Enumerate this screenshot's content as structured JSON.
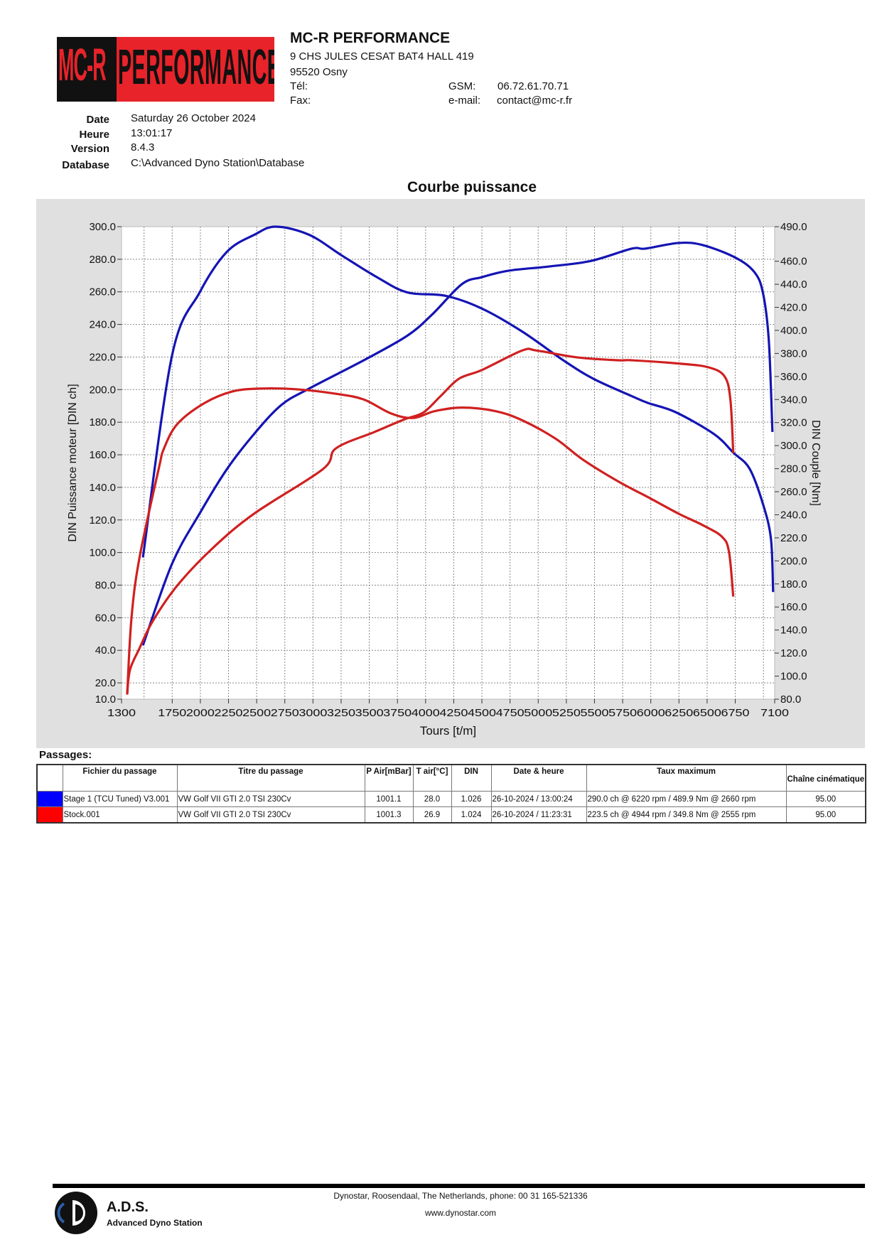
{
  "header": {
    "logo_text": "MC-R PERFORMANCE",
    "company": "MC-R PERFORMANCE",
    "address1": "9 CHS JULES CESAT BAT4 HALL 419",
    "address2": "95520 Osny",
    "tel_label": "Tél:",
    "fax_label": "Fax:",
    "gsm_label": "GSM:",
    "gsm_value": "06.72.61.70.71",
    "email_label": "e-mail:",
    "email_value": "contact@mc-r.fr"
  },
  "info": {
    "date_label": "Date",
    "date_value": "Saturday 26 October 2024",
    "heure_label": "Heure",
    "heure_value": "13:01:17",
    "version_label": "Version",
    "version_value": "8.4.3",
    "database_label": "Database",
    "database_value": "C:\\Advanced Dyno Station\\Database"
  },
  "chart_data": {
    "type": "line",
    "title": "Courbe puissance",
    "xlabel": "Tours [t/m]",
    "ylabel_left": "DIN Puissance moteur [DIN ch]",
    "ylabel_right": "DIN Couple [Nm]",
    "xlim": [
      1300,
      7100
    ],
    "ylim_left": [
      10,
      300
    ],
    "ylim_right": [
      80,
      490
    ],
    "x_ticks": [
      "1300",
      "1750",
      "2000",
      "2250",
      "2500",
      "2750",
      "3000",
      "3250",
      "3500",
      "3750",
      "4000",
      "4250",
      "4500",
      "4750",
      "5000",
      "5250",
      "5500",
      "5750",
      "6000",
      "6250",
      "6500",
      "6750",
      "7100"
    ],
    "x_tick_values": [
      1300,
      1750,
      2000,
      2250,
      2500,
      2750,
      3000,
      3250,
      3500,
      3750,
      4000,
      4250,
      4500,
      4750,
      5000,
      5250,
      5500,
      5750,
      6000,
      6250,
      6500,
      6750,
      7100
    ],
    "y_left_ticks": [
      "300.0",
      "280.0",
      "260.0",
      "240.0",
      "220.0",
      "200.0",
      "180.0",
      "160.0",
      "140.0",
      "120.0",
      "100.0",
      "80.0",
      "60.0",
      "40.0",
      "20.0",
      "10.0"
    ],
    "y_left_tick_values": [
      300,
      280,
      260,
      240,
      220,
      200,
      180,
      160,
      140,
      120,
      100,
      80,
      60,
      40,
      20,
      10
    ],
    "y_right_ticks": [
      "490.0",
      "460.0",
      "440.0",
      "420.0",
      "400.0",
      "380.0",
      "360.0",
      "340.0",
      "320.0",
      "300.0",
      "280.0",
      "260.0",
      "240.0",
      "220.0",
      "200.0",
      "180.0",
      "160.0",
      "140.0",
      "120.0",
      "100.0",
      "80.0"
    ],
    "y_right_tick_values": [
      490,
      460,
      440,
      420,
      400,
      380,
      360,
      340,
      320,
      300,
      280,
      260,
      240,
      220,
      200,
      180,
      160,
      140,
      120,
      100,
      80
    ],
    "grid": true,
    "series": [
      {
        "axis": "left",
        "color": "#1414b4",
        "points": [
          [
            1490,
            43
          ],
          [
            1748,
            93
          ],
          [
            1994,
            124
          ],
          [
            2234,
            151
          ],
          [
            2480,
            173
          ],
          [
            2720,
            190.6
          ],
          [
            2965,
            200.6
          ],
          [
            3451,
            218
          ],
          [
            3836,
            233
          ],
          [
            4057,
            246
          ],
          [
            4322,
            264.7
          ],
          [
            4500,
            269
          ],
          [
            4738,
            273
          ],
          [
            5104,
            275.6
          ],
          [
            5470,
            279
          ],
          [
            5830,
            286.5
          ],
          [
            5950,
            286.5
          ],
          [
            6246,
            290
          ],
          [
            6461,
            288.7
          ],
          [
            6751,
            281
          ],
          [
            6921,
            272
          ],
          [
            6997,
            259
          ],
          [
            7048,
            230
          ],
          [
            7080,
            174
          ]
        ]
      },
      {
        "axis": "right",
        "color": "#1414b4",
        "points": [
          [
            1490,
            203
          ],
          [
            1748,
            378
          ],
          [
            1994,
            433
          ],
          [
            2234,
            468
          ],
          [
            2480,
            483
          ],
          [
            2669,
            490
          ],
          [
            2965,
            483
          ],
          [
            3256,
            465
          ],
          [
            3571,
            446
          ],
          [
            3836,
            433
          ],
          [
            4177,
            430
          ],
          [
            4499,
            419
          ],
          [
            4858,
            399
          ],
          [
            5224,
            374
          ],
          [
            5490,
            358
          ],
          [
            5830,
            343
          ],
          [
            5975,
            337
          ],
          [
            6221,
            329
          ],
          [
            6562,
            310
          ],
          [
            6732,
            294
          ],
          [
            6877,
            280
          ],
          [
            6997,
            249
          ],
          [
            7067,
            219
          ],
          [
            7086,
            173
          ]
        ]
      },
      {
        "axis": "left",
        "color": "#d02020",
        "points": [
          [
            1350,
            13
          ],
          [
            1375,
            28
          ],
          [
            1458,
            41
          ],
          [
            1578,
            58
          ],
          [
            1798,
            80
          ],
          [
            2114,
            103
          ],
          [
            2480,
            124
          ],
          [
            3085,
            151
          ],
          [
            3205,
            164
          ],
          [
            3546,
            174
          ],
          [
            3811,
            181.7
          ],
          [
            3981,
            186
          ],
          [
            4133,
            196
          ],
          [
            4297,
            206.7
          ],
          [
            4499,
            212
          ],
          [
            4858,
            224
          ],
          [
            4984,
            224
          ],
          [
            5344,
            219.8
          ],
          [
            5710,
            218
          ],
          [
            5830,
            218
          ],
          [
            6246,
            216
          ],
          [
            6511,
            213.7
          ],
          [
            6656,
            208
          ],
          [
            6707,
            193.6
          ],
          [
            6732,
            161
          ]
        ]
      },
      {
        "axis": "right",
        "color": "#d02020",
        "points": [
          [
            1350,
            84
          ],
          [
            1388,
            150
          ],
          [
            1458,
            202
          ],
          [
            1628,
            279
          ],
          [
            1679,
            298
          ],
          [
            1798,
            319
          ],
          [
            2038,
            337
          ],
          [
            2284,
            347
          ],
          [
            2524,
            349.5
          ],
          [
            2839,
            349
          ],
          [
            3205,
            345
          ],
          [
            3451,
            340
          ],
          [
            3691,
            328
          ],
          [
            3887,
            324
          ],
          [
            4083,
            330
          ],
          [
            4322,
            333
          ],
          [
            4618,
            330
          ],
          [
            4858,
            322
          ],
          [
            5155,
            306
          ],
          [
            5395,
            288
          ],
          [
            5710,
            269
          ],
          [
            6000,
            254
          ],
          [
            6246,
            241
          ],
          [
            6461,
            231
          ],
          [
            6631,
            221
          ],
          [
            6694,
            208
          ],
          [
            6732,
            169
          ]
        ]
      }
    ]
  },
  "passages": {
    "label": "Passages:",
    "columns": [
      "",
      "Fichier du passage",
      "Titre du passage",
      "P Air[mBar]",
      "T air[°C]",
      "DIN",
      "Date & heure",
      "Taux maximum",
      "Chaîne cinématique"
    ],
    "rows": [
      {
        "color": "#0000ff",
        "fichier": "Stage 1 (TCU Tuned) V3.001",
        "titre": "VW Golf VII GTI 2.0 TSI 230Cv",
        "pair": "1001.1",
        "tair": "28.0",
        "din": "1.026",
        "date": "26-10-2024 / 13:00:24",
        "taux": "290.0 ch @ 6220 rpm / 489.9 Nm @ 2660 rpm",
        "chaine": "95.00"
      },
      {
        "color": "#ff0000",
        "fichier": "Stock.001",
        "titre": "VW Golf VII GTI 2.0 TSI 230Cv",
        "pair": "1001.3",
        "tair": "26.9",
        "din": "1.024",
        "date": "26-10-2024 / 11:23:31",
        "taux": "223.5 ch @ 4944 rpm / 349.8 Nm @ 2555 rpm",
        "chaine": "95.00"
      }
    ]
  },
  "footer": {
    "ads_title": "A.D.S.",
    "ads_subtitle": "Advanced Dyno Station",
    "contact": "Dynostar,  Roosendaal, The Netherlands, phone: 00 31 165-521336",
    "website": "www.dynostar.com"
  }
}
